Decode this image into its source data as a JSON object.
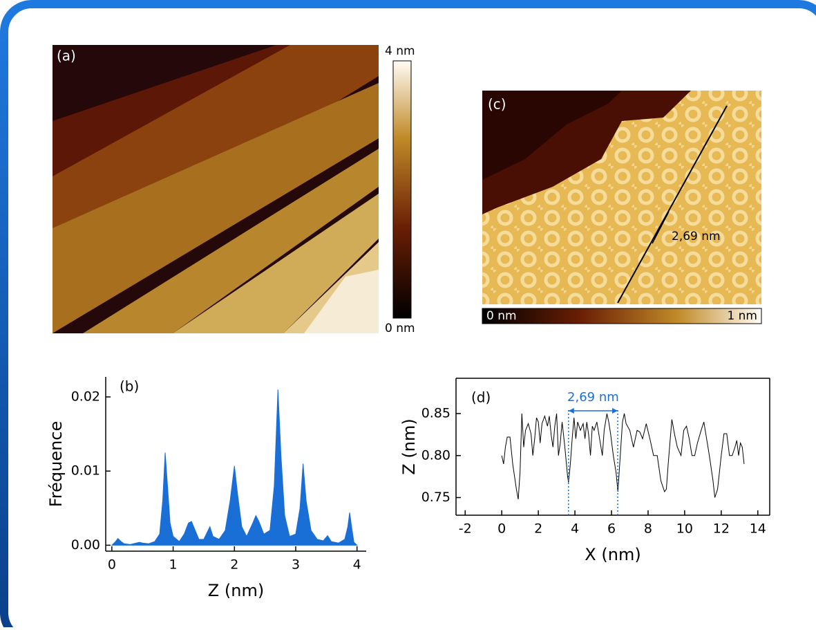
{
  "images": [
    {
      "label": "(a)",
      "colorbar": {
        "max_label": "4 nm",
        "min_label": "0 nm"
      }
    },
    {
      "label": "(c)",
      "annotation": "2,69 nm",
      "colorbar": {
        "min_label": "0 nm",
        "max_label": "1 nm"
      }
    }
  ],
  "chart_data": [
    {
      "type": "area",
      "panel_label": "(b)",
      "xlabel": "Z (nm)",
      "ylabel": "Fréquence",
      "color": "#1a6fd6",
      "x": [
        0.0,
        0.05,
        0.1,
        0.15,
        0.2,
        0.3,
        0.45,
        0.5,
        0.6,
        0.7,
        0.78,
        0.83,
        0.87,
        0.9,
        0.95,
        1.0,
        1.1,
        1.18,
        1.25,
        1.3,
        1.35,
        1.42,
        1.5,
        1.6,
        1.65,
        1.75,
        1.85,
        1.93,
        2.0,
        2.05,
        2.12,
        2.2,
        2.3,
        2.35,
        2.4,
        2.48,
        2.58,
        2.65,
        2.71,
        2.76,
        2.82,
        2.9,
        3.0,
        3.07,
        3.12,
        3.17,
        3.25,
        3.35,
        3.45,
        3.52,
        3.58,
        3.7,
        3.8,
        3.85,
        3.88,
        3.92,
        3.95,
        4.0
      ],
      "values": [
        0,
        0.0004,
        0.0009,
        0.0005,
        0.0002,
        0.0001,
        0.0004,
        0.0003,
        0.0002,
        0.0005,
        0.0015,
        0.006,
        0.0125,
        0.009,
        0.003,
        0.0012,
        0.0005,
        0.0015,
        0.003,
        0.0032,
        0.0022,
        0.0008,
        0.0008,
        0.0025,
        0.0012,
        0.0008,
        0.002,
        0.006,
        0.0107,
        0.007,
        0.0025,
        0.0012,
        0.003,
        0.004,
        0.0032,
        0.0015,
        0.002,
        0.008,
        0.021,
        0.012,
        0.004,
        0.0012,
        0.0015,
        0.005,
        0.011,
        0.006,
        0.002,
        0.0008,
        0.0006,
        0.0013,
        0.0005,
        0.0003,
        0.0008,
        0.0025,
        0.0044,
        0.002,
        0.0004,
        0
      ],
      "xlim": [
        -0.1,
        4.15
      ],
      "ylim": [
        -0.0008,
        0.0227
      ],
      "xticks": [
        0,
        1,
        2,
        3,
        4
      ],
      "yticks": [
        {
          "value": 0,
          "label": "0.00"
        },
        0.01,
        0.02
      ]
    },
    {
      "type": "line",
      "panel_label": "(d)",
      "xlabel": "X (nm)",
      "ylabel": "Z (nm)",
      "color": "#000000",
      "x": [
        0,
        0.1,
        0.2,
        0.3,
        0.45,
        0.6,
        0.8,
        0.9,
        1.0,
        1.1,
        1.2,
        1.3,
        1.45,
        1.6,
        1.7,
        1.8,
        1.9,
        2.0,
        2.1,
        2.2,
        2.35,
        2.5,
        2.6,
        2.7,
        2.8,
        2.9,
        3.0,
        3.1,
        3.2,
        3.3,
        3.45,
        3.6,
        3.65,
        3.75,
        3.85,
        3.95,
        4.05,
        4.15,
        4.3,
        4.45,
        4.55,
        4.65,
        4.75,
        4.85,
        4.95,
        5.05,
        5.2,
        5.35,
        5.5,
        5.6,
        5.75,
        5.85,
        5.95,
        6.1,
        6.25,
        6.35,
        6.45,
        6.6,
        6.7,
        6.8,
        7.0,
        7.2,
        7.4,
        7.55,
        7.7,
        7.9,
        8.1,
        8.3,
        8.5,
        8.7,
        8.9,
        9.0,
        9.1,
        9.3,
        9.45,
        9.6,
        9.8,
        9.95,
        10.1,
        10.25,
        10.4,
        10.55,
        10.7,
        10.9,
        11.05,
        11.2,
        11.35,
        11.55,
        11.65,
        11.8,
        12.0,
        12.15,
        12.3,
        12.45,
        12.6,
        12.75,
        12.85,
        12.95,
        13.05,
        13.15,
        13.25
      ],
      "values": [
        0.8,
        0.79,
        0.81,
        0.822,
        0.822,
        0.79,
        0.76,
        0.748,
        0.78,
        0.85,
        0.81,
        0.83,
        0.838,
        0.826,
        0.8,
        0.82,
        0.845,
        0.84,
        0.815,
        0.838,
        0.847,
        0.835,
        0.847,
        0.825,
        0.81,
        0.835,
        0.85,
        0.8,
        0.815,
        0.84,
        0.81,
        0.775,
        0.768,
        0.79,
        0.82,
        0.845,
        0.82,
        0.84,
        0.83,
        0.838,
        0.82,
        0.84,
        0.825,
        0.8,
        0.835,
        0.83,
        0.84,
        0.82,
        0.8,
        0.83,
        0.85,
        0.84,
        0.826,
        0.8,
        0.78,
        0.757,
        0.79,
        0.84,
        0.85,
        0.838,
        0.83,
        0.81,
        0.83,
        0.828,
        0.82,
        0.838,
        0.82,
        0.8,
        0.8,
        0.77,
        0.757,
        0.76,
        0.79,
        0.843,
        0.825,
        0.81,
        0.8,
        0.83,
        0.835,
        0.82,
        0.8,
        0.8,
        0.815,
        0.83,
        0.84,
        0.82,
        0.8,
        0.77,
        0.75,
        0.76,
        0.8,
        0.826,
        0.826,
        0.8,
        0.8,
        0.81,
        0.818,
        0.8,
        0.815,
        0.81,
        0.79
      ],
      "xlim": [
        -2.5,
        14.65
      ],
      "ylim": [
        0.729,
        0.892
      ],
      "xticks": [
        -2,
        0,
        2,
        4,
        6,
        8,
        10,
        12,
        14
      ],
      "yticks": [
        0.75,
        {
          "value": 0.8,
          "label": "0.80"
        },
        0.85
      ],
      "annotation": {
        "text": "2,69 nm",
        "x": [
          3.65,
          6.34
        ],
        "color": "#1a6fd6"
      }
    }
  ]
}
